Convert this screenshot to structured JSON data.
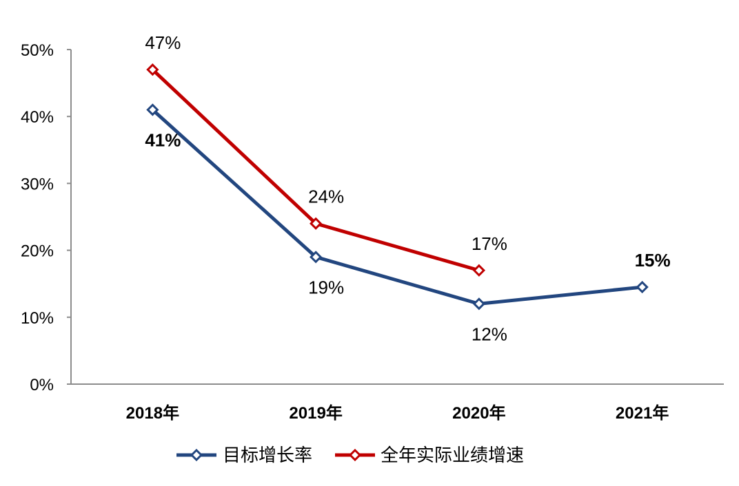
{
  "chart_data": {
    "type": "line",
    "title": "",
    "xlabel": "",
    "ylabel": "",
    "categories": [
      "2018年",
      "2019年",
      "2020年",
      "2021年"
    ],
    "ylim": [
      0,
      50
    ],
    "yticks": [
      0,
      10,
      20,
      30,
      40,
      50
    ],
    "ytick_labels": [
      "0%",
      "10%",
      "20%",
      "30%",
      "40%",
      "50%"
    ],
    "series": [
      {
        "name": "目标增长率",
        "color": "#22467f",
        "values": [
          41,
          19,
          12,
          14.5
        ],
        "labels": [
          "41%",
          "19%",
          "12%",
          "15%"
        ],
        "label_position": [
          "below",
          "below",
          "below",
          "above"
        ],
        "label_bold": [
          true,
          false,
          false,
          true
        ]
      },
      {
        "name": "全年实际业绩增速",
        "color": "#c00000",
        "values": [
          47,
          24,
          17,
          null
        ],
        "labels": [
          "47%",
          "24%",
          "17%",
          null
        ],
        "label_position": [
          "above",
          "above",
          "above",
          null
        ],
        "label_bold": [
          false,
          false,
          false,
          false
        ]
      }
    ],
    "legend_position": "bottom-center",
    "grid": false
  }
}
